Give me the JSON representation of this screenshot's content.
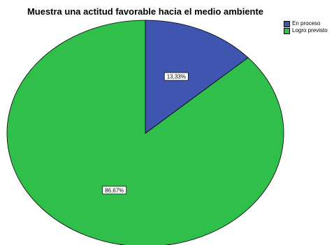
{
  "chart_data": {
    "type": "pie",
    "title": "Muestra una actitud favorable hacia el medio ambiente",
    "categories": [
      "En proceso",
      "Logro previsto"
    ],
    "values": [
      13.33,
      86.67
    ],
    "data_labels": [
      "13,33%",
      "86,67%"
    ],
    "colors": [
      "#3f55b0",
      "#2fbf4a"
    ],
    "legend_position": "top-right",
    "start": "12 o'clock, clockwise"
  }
}
